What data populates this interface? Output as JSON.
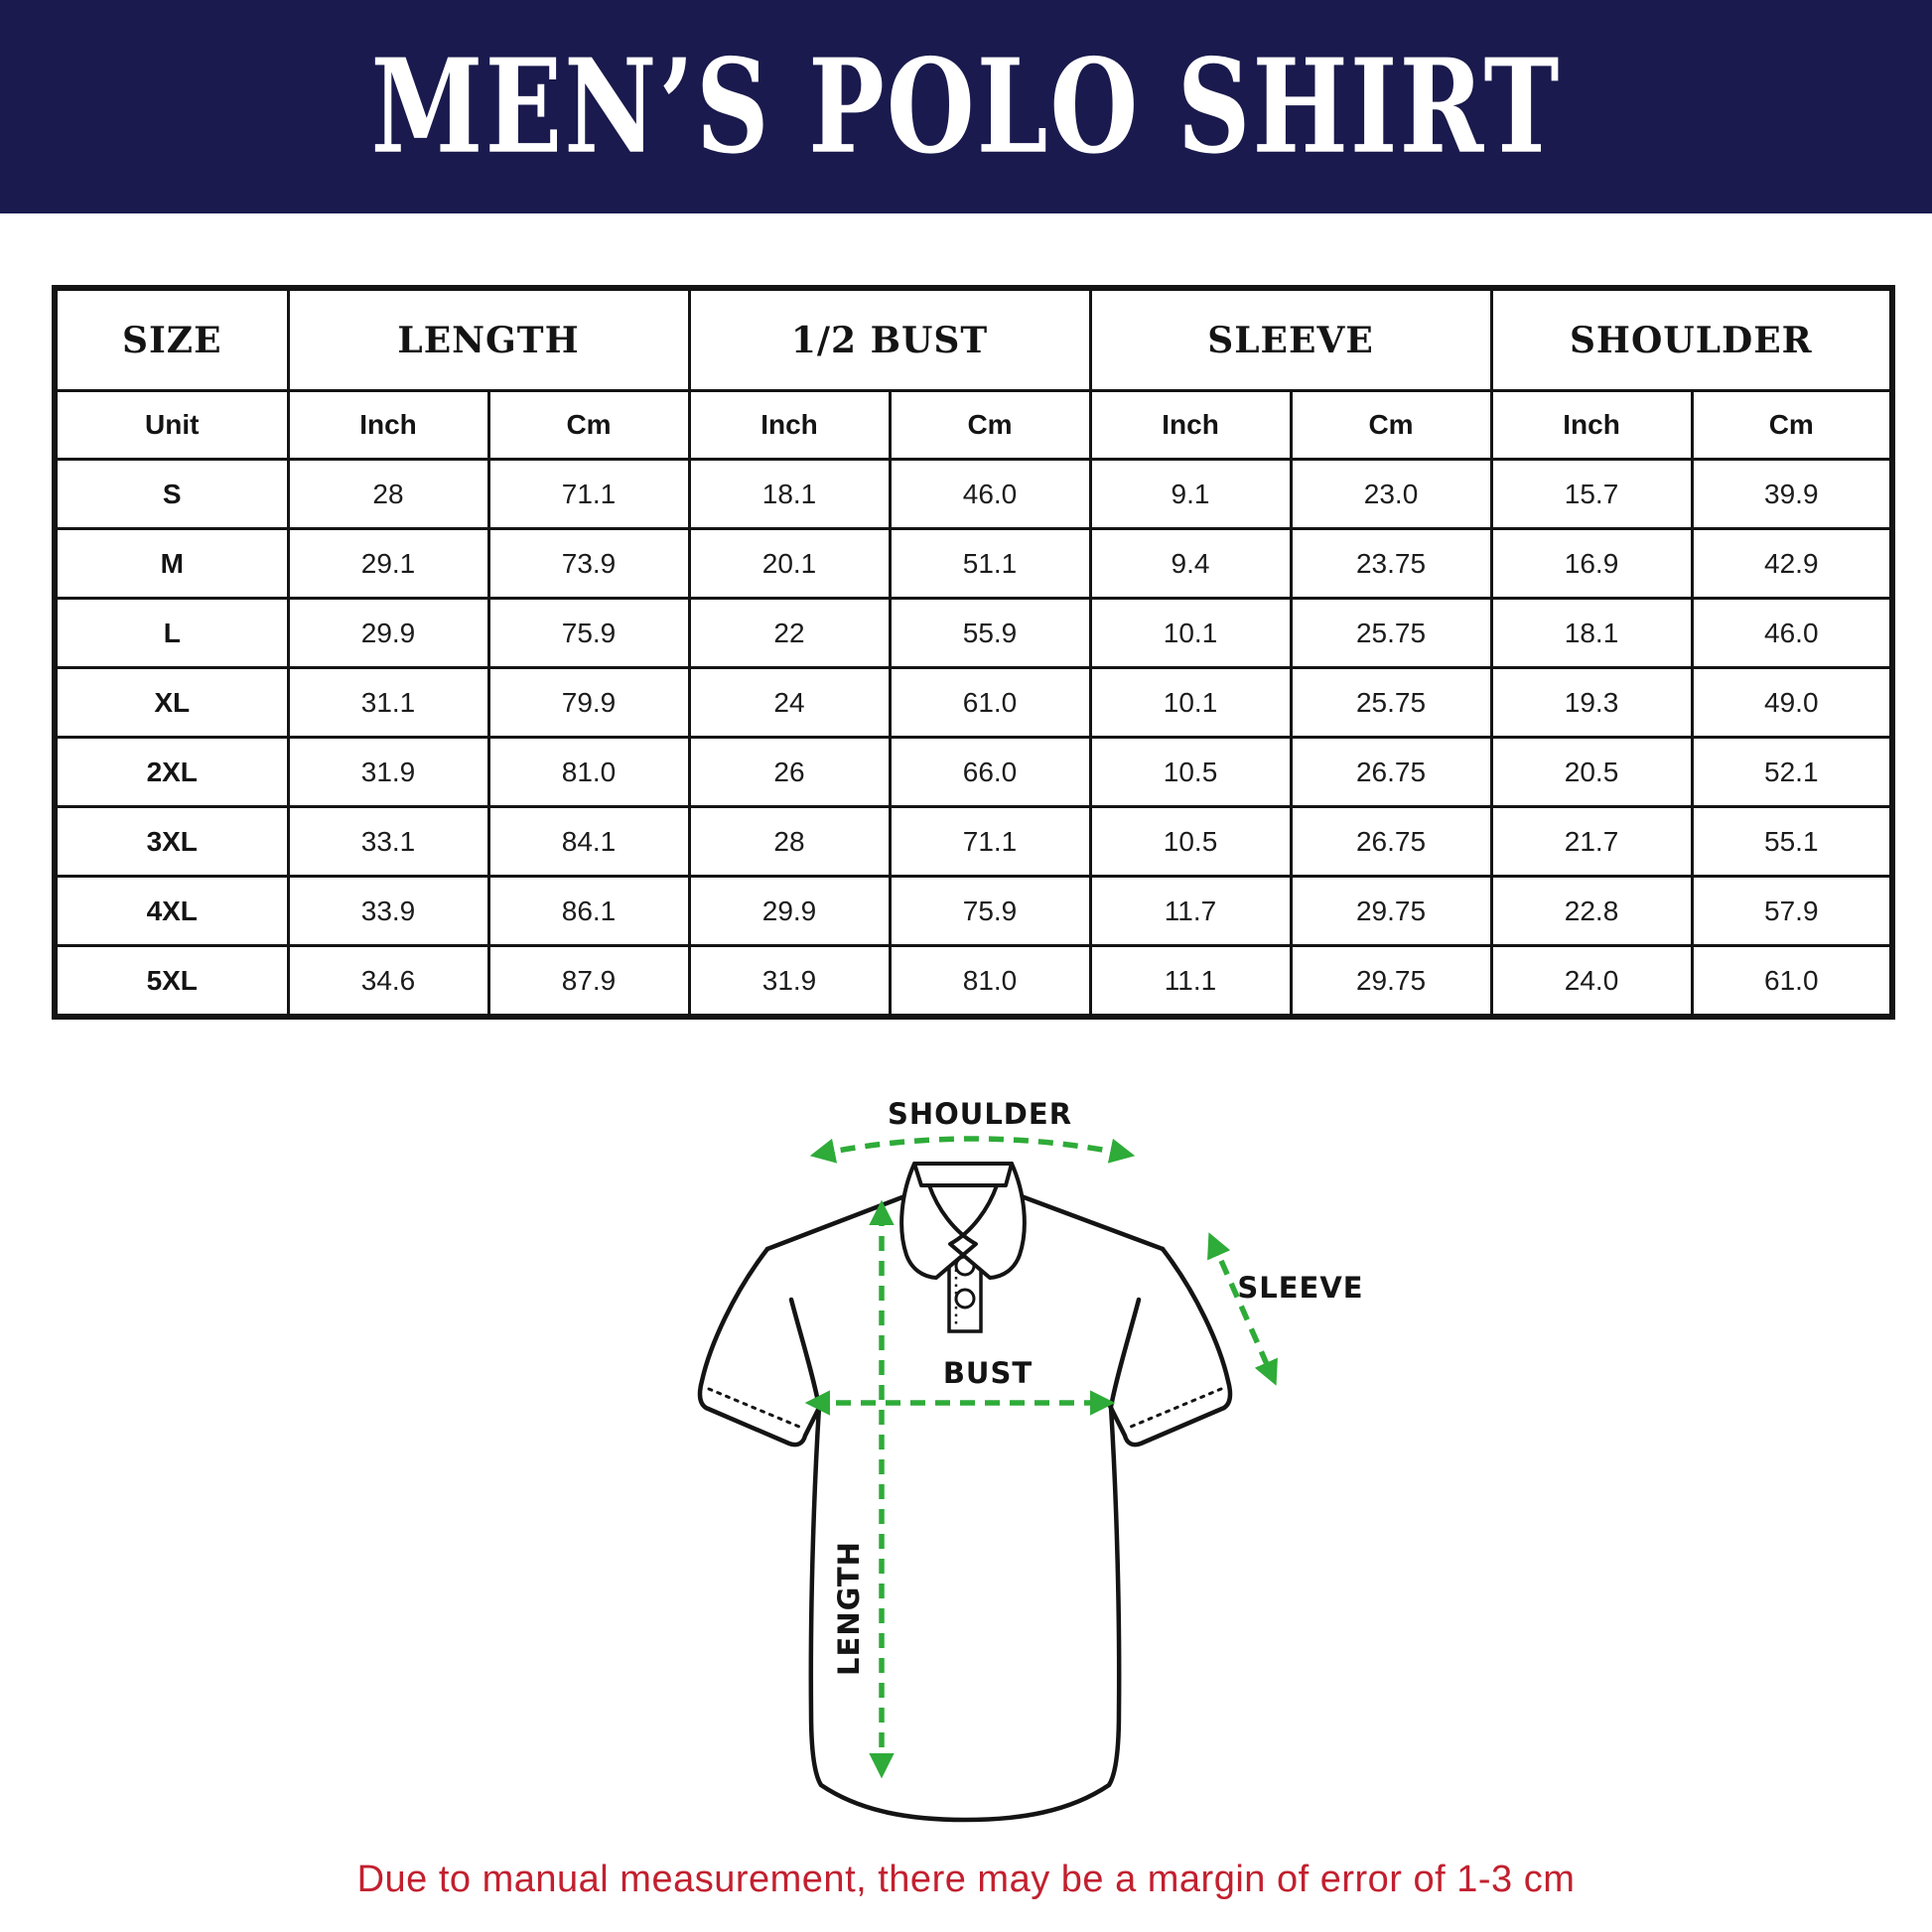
{
  "header": {
    "title": "MEN’S POLO SHIRT"
  },
  "table": {
    "columns": [
      "SIZE",
      "LENGTH",
      "1/2 BUST",
      "SLEEVE",
      "SHOULDER"
    ],
    "unit": {
      "label": "Unit",
      "cols": [
        "Inch",
        "Cm",
        "Inch",
        "Cm",
        "Inch",
        "Cm",
        "Inch",
        "Cm"
      ]
    },
    "rows": [
      {
        "size": "S",
        "values": [
          "28",
          "71.1",
          "18.1",
          "46.0",
          "9.1",
          "23.0",
          "15.7",
          "39.9"
        ]
      },
      {
        "size": "M",
        "values": [
          "29.1",
          "73.9",
          "20.1",
          "51.1",
          "9.4",
          "23.75",
          "16.9",
          "42.9"
        ]
      },
      {
        "size": "L",
        "values": [
          "29.9",
          "75.9",
          "22",
          "55.9",
          "10.1",
          "25.75",
          "18.1",
          "46.0"
        ]
      },
      {
        "size": "XL",
        "values": [
          "31.1",
          "79.9",
          "24",
          "61.0",
          "10.1",
          "25.75",
          "19.3",
          "49.0"
        ]
      },
      {
        "size": "2XL",
        "values": [
          "31.9",
          "81.0",
          "26",
          "66.0",
          "10.5",
          "26.75",
          "20.5",
          "52.1"
        ]
      },
      {
        "size": "3XL",
        "values": [
          "33.1",
          "84.1",
          "28",
          "71.1",
          "10.5",
          "26.75",
          "21.7",
          "55.1"
        ]
      },
      {
        "size": "4XL",
        "values": [
          "33.9",
          "86.1",
          "29.9",
          "75.9",
          "11.7",
          "29.75",
          "22.8",
          "57.9"
        ]
      },
      {
        "size": "5XL",
        "values": [
          "34.6",
          "87.9",
          "31.9",
          "81.0",
          "11.1",
          "29.75",
          "24.0",
          "61.0"
        ]
      }
    ]
  },
  "chart_data": {
    "type": "table",
    "title": "MEN’S POLO SHIRT",
    "columns": [
      "SIZE",
      "LENGTH Inch",
      "LENGTH Cm",
      "1/2 BUST Inch",
      "1/2 BUST Cm",
      "SLEEVE Inch",
      "SLEEVE Cm",
      "SHOULDER Inch",
      "SHOULDER Cm"
    ],
    "rows": [
      [
        "S",
        28,
        71.1,
        18.1,
        46.0,
        9.1,
        23.0,
        15.7,
        39.9
      ],
      [
        "M",
        29.1,
        73.9,
        20.1,
        51.1,
        9.4,
        23.75,
        16.9,
        42.9
      ],
      [
        "L",
        29.9,
        75.9,
        22,
        55.9,
        10.1,
        25.75,
        18.1,
        46.0
      ],
      [
        "XL",
        31.1,
        79.9,
        24,
        61.0,
        10.1,
        25.75,
        19.3,
        49.0
      ],
      [
        "2XL",
        31.9,
        81.0,
        26,
        66.0,
        10.5,
        26.75,
        20.5,
        52.1
      ],
      [
        "3XL",
        33.1,
        84.1,
        28,
        71.1,
        10.5,
        26.75,
        21.7,
        55.1
      ],
      [
        "4XL",
        33.9,
        86.1,
        29.9,
        75.9,
        11.7,
        29.75,
        22.8,
        57.9
      ],
      [
        "5XL",
        34.6,
        87.9,
        31.9,
        81.0,
        11.1,
        29.75,
        24.0,
        61.0
      ]
    ]
  },
  "diagram": {
    "labels": {
      "shoulder": "SHOULDER",
      "sleeve": "SLEEVE",
      "bust": "BUST",
      "length": "LENGTH"
    }
  },
  "footer": {
    "note": "Due to manual measurement, there may be a margin of error of 1-3 cm"
  },
  "colors": {
    "navy": "#1a1a4e",
    "red": "#c2202f",
    "green": "#2eab38",
    "line": "#141414"
  }
}
